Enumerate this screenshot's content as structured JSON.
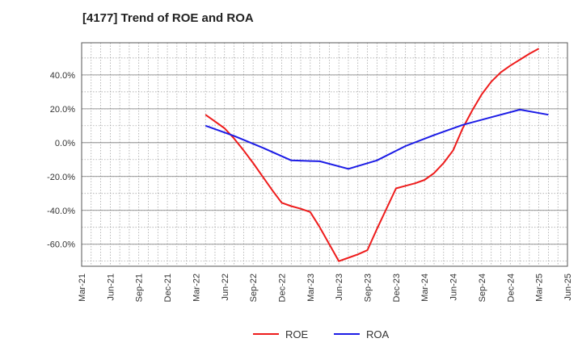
{
  "chart_data": {
    "type": "line",
    "title": "[4177]  Trend of ROE and ROA",
    "xlabel": "",
    "ylabel": "",
    "x_ticks": [
      "Mar-21",
      "Jun-21",
      "Sep-21",
      "Dec-21",
      "Mar-22",
      "Jun-22",
      "Sep-22",
      "Dec-22",
      "Mar-23",
      "Jun-23",
      "Sep-23",
      "Dec-23",
      "Mar-24",
      "Jun-24",
      "Sep-24",
      "Dec-24",
      "Mar-25",
      "Jun-25"
    ],
    "y_ticks": [
      -60,
      -40,
      -20,
      0,
      20,
      40
    ],
    "y_tick_labels": [
      "-60.0%",
      "-40.0%",
      "-20.0%",
      "0.0%",
      "20.0%",
      "40.0%"
    ],
    "ylim": [
      -73,
      59
    ],
    "grid": true,
    "legend_position": "bottom",
    "series": [
      {
        "name": "ROE",
        "color": "#ee1c1c",
        "x": [
          "Apr-22",
          "May-22",
          "Jun-22",
          "Jul-22",
          "Aug-22",
          "Sep-22",
          "Oct-22",
          "Nov-22",
          "Dec-22",
          "Jan-23",
          "Feb-23",
          "Mar-23",
          "Apr-23",
          "May-23",
          "Jun-23",
          "Jul-23",
          "Aug-23",
          "Sep-23",
          "Oct-23",
          "Nov-23",
          "Dec-23",
          "Jan-24",
          "Feb-24",
          "Mar-24",
          "Apr-24",
          "May-24",
          "Jun-24",
          "Jul-24",
          "Aug-24",
          "Sep-24",
          "Oct-24",
          "Nov-24",
          "Dec-24",
          "Jan-25",
          "Feb-25",
          "Mar-25"
        ],
        "values": [
          16.5,
          12.5,
          8.5,
          2.5,
          -4.5,
          -12.0,
          -20.0,
          -28.0,
          -35.5,
          -37.5,
          -39.0,
          -41.0,
          -50.0,
          -60.0,
          -70.0,
          -68.0,
          -66.0,
          -63.5,
          -51.0,
          -39.0,
          -27.0,
          -25.5,
          -24.0,
          -22.0,
          -18.0,
          -12.0,
          -4.5,
          8.5,
          19.0,
          28.5,
          36.0,
          41.5,
          45.5,
          49.0,
          52.5,
          55.5
        ]
      },
      {
        "name": "ROA",
        "color": "#1c1ce6",
        "x": [
          "Apr-22",
          "Jul-22",
          "Oct-22",
          "Jan-23",
          "Apr-23",
          "Jul-23",
          "Oct-23",
          "Jan-24",
          "Apr-24",
          "Jul-24",
          "Oct-24",
          "Jan-25",
          "Apr-25"
        ],
        "values": [
          10.0,
          4.0,
          -3.0,
          -10.5,
          -11.0,
          -15.5,
          -10.5,
          -2.0,
          4.5,
          10.5,
          15.0,
          19.5,
          16.5
        ]
      }
    ]
  }
}
